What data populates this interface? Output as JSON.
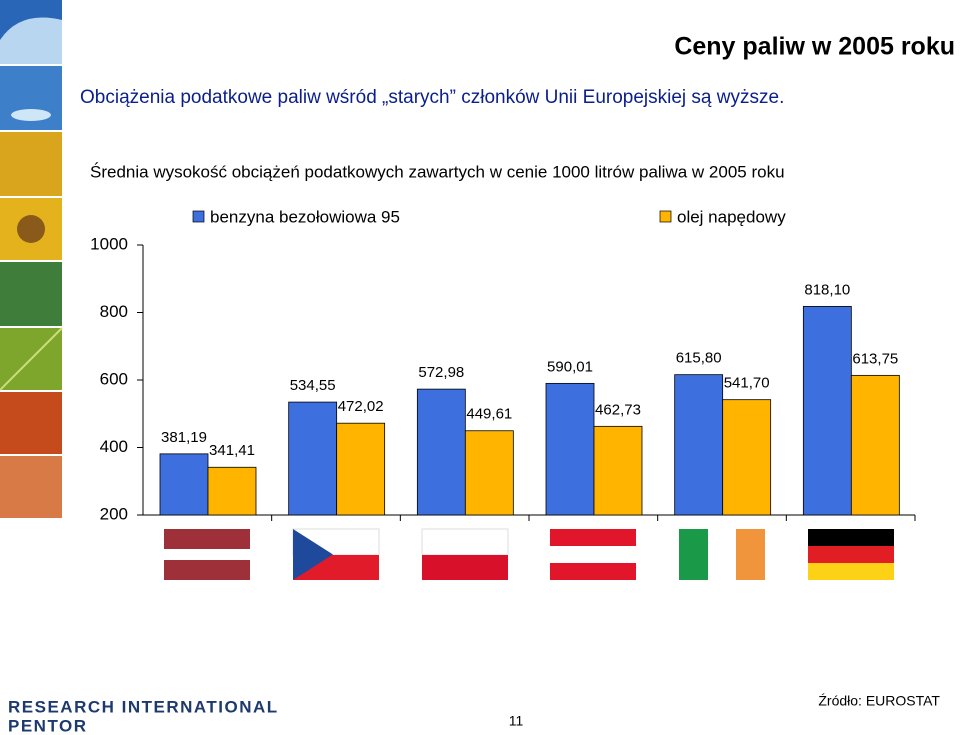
{
  "slide": {
    "title": "Ceny paliw w 2005 roku",
    "subtitle": "Obciążenia podatkowe paliw wśród „starych” członków Unii Europejskiej są wyższe.",
    "logo": [
      "RESEARCH INTERNATIONAL",
      "PENTOR"
    ],
    "page_number": "11",
    "source": "Źródło: EUROSTAT"
  },
  "chart_data": {
    "type": "bar",
    "title": "Średnia wysokość obciążeń podatkowych zawartych w cenie 1000 litrów paliwa w 2005 roku",
    "categories": [
      null,
      null,
      null,
      null,
      null,
      null
    ],
    "series": [
      {
        "name": "benzyna bezołowiowa 95",
        "color": "#3d6fde",
        "values": [
          381.19,
          534.55,
          572.98,
          590.01,
          615.8,
          818.1
        ],
        "value_labels": [
          "381,19",
          "534,55",
          "572,98",
          "590,01",
          "615,80",
          "818,10"
        ]
      },
      {
        "name": "olej napędowy",
        "color": "#ffb400",
        "values": [
          341.41,
          472.02,
          449.61,
          462.73,
          541.7,
          613.75
        ],
        "value_labels": [
          "341,41",
          "472,02",
          "449,61",
          "462,73",
          "541,70",
          "613,75"
        ]
      }
    ],
    "ylim": [
      200,
      1000
    ],
    "yticks": [
      200,
      400,
      600,
      800,
      1000
    ],
    "grid": false,
    "legend": "top"
  }
}
